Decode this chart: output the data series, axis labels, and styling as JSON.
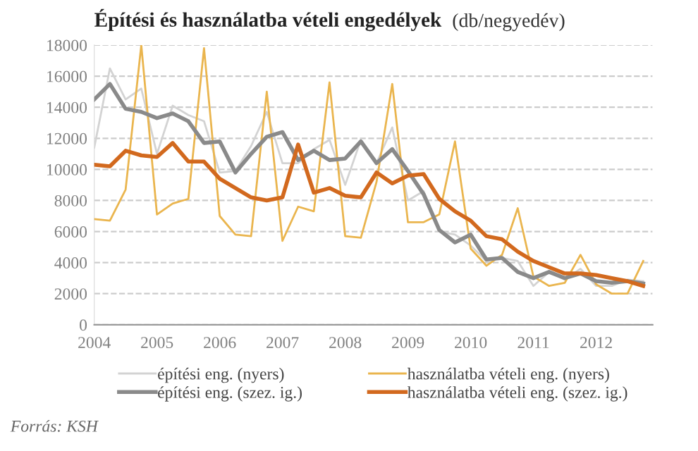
{
  "chart_data": {
    "type": "line",
    "title": "Építési és használatba vételi engedélyek",
    "subtitle": "(db/negyedév)",
    "x": [
      2004,
      2004.25,
      2004.5,
      2004.75,
      2005,
      2005.25,
      2005.5,
      2005.75,
      2006,
      2006.25,
      2006.5,
      2006.75,
      2007,
      2007.25,
      2007.5,
      2007.75,
      2008,
      2008.25,
      2008.5,
      2008.75,
      2009,
      2009.25,
      2009.5,
      2009.75,
      2010,
      2010.25,
      2010.5,
      2010.75,
      2011,
      2011.25,
      2011.5,
      2011.75,
      2012,
      2012.25,
      2012.5,
      2012.75
    ],
    "series": [
      {
        "name": "építési eng. (nyers)",
        "color": "#d3d3d3",
        "values": [
          11400,
          16500,
          14500,
          15200,
          11000,
          14100,
          13500,
          13100,
          9800,
          9900,
          11500,
          13700,
          10400,
          10400,
          11300,
          11900,
          9000,
          11900,
          10400,
          12700,
          8000,
          8600,
          6000,
          5800,
          5100,
          4100,
          4300,
          4100,
          2500,
          3400,
          2900,
          3600,
          2500,
          2500,
          2900,
          2800
        ]
      },
      {
        "name": "használatba vételi eng. (nyers)",
        "color": "#eab54e",
        "values": [
          6800,
          6700,
          8700,
          18000,
          7100,
          7800,
          8100,
          17800,
          7000,
          5800,
          5700,
          15000,
          5400,
          7600,
          7300,
          15600,
          5700,
          5600,
          9200,
          15500,
          6600,
          6600,
          7100,
          11800,
          4900,
          3800,
          4500,
          7500,
          3100,
          2500,
          2700,
          4500,
          2600,
          2000,
          2000,
          4100
        ]
      },
      {
        "name": "építési eng. (szez. ig.)",
        "color": "#8a8a8a",
        "values": [
          14500,
          15500,
          13900,
          13700,
          13300,
          13600,
          13100,
          11700,
          11800,
          9800,
          11000,
          12100,
          12400,
          10600,
          11200,
          10600,
          10700,
          11800,
          10400,
          11300,
          9900,
          8400,
          6100,
          5300,
          5800,
          4200,
          4300,
          3400,
          3000,
          3400,
          3000,
          3300,
          2800,
          2700,
          2800,
          2650
        ]
      },
      {
        "name": "használatba vételi eng. (szez. ig.)",
        "color": "#d2691e",
        "values": [
          10300,
          10200,
          11200,
          10900,
          10800,
          11700,
          10500,
          10500,
          9400,
          8800,
          8200,
          8000,
          8200,
          11600,
          8500,
          8800,
          8300,
          8200,
          9800,
          9100,
          9600,
          9700,
          8100,
          7300,
          6700,
          5700,
          5500,
          4700,
          4100,
          3700,
          3300,
          3300,
          3200,
          3000,
          2800,
          2500
        ]
      }
    ],
    "xlim": [
      2004,
      2012.9
    ],
    "xticks": [
      2004,
      2005,
      2006,
      2007,
      2008,
      2009,
      2010,
      2011,
      2012
    ],
    "ylim": [
      0,
      18000
    ],
    "yticks": [
      0,
      2000,
      4000,
      6000,
      8000,
      10000,
      12000,
      14000,
      16000,
      18000
    ],
    "grid": "y",
    "legend": "bottom",
    "marker": "none",
    "line_style": "solid",
    "annotations": [
      "Forrás: KSH"
    ]
  }
}
